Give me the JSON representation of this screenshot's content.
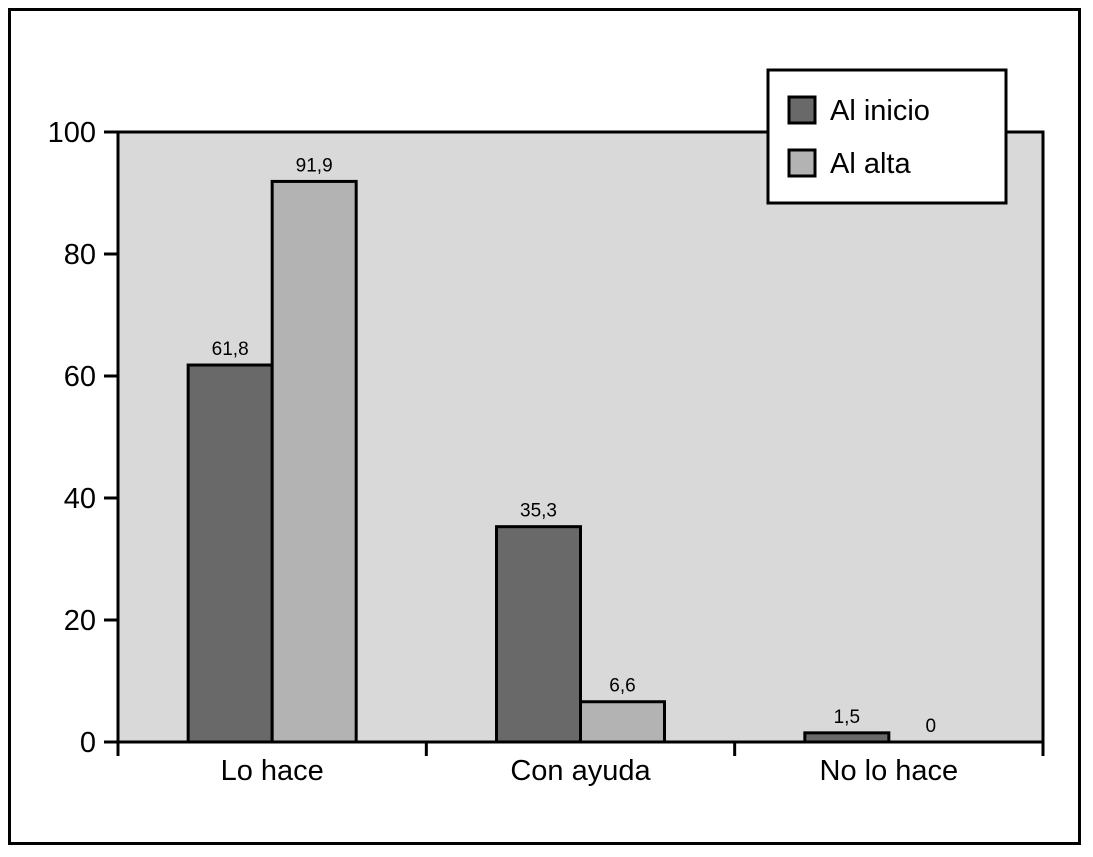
{
  "chart_data": {
    "type": "bar",
    "categories": [
      "Lo hace",
      "Con ayuda",
      "No lo hace"
    ],
    "series": [
      {
        "name": "Al inicio",
        "values": [
          61.8,
          35.3,
          1.5
        ],
        "labels": [
          "61,8",
          "35,3",
          "1,5"
        ],
        "color": "#696969"
      },
      {
        "name": "Al alta",
        "values": [
          91.9,
          6.6,
          0
        ],
        "labels": [
          "91,9",
          "6,6",
          "0"
        ],
        "color": "#b3b3b3"
      }
    ],
    "ylim": [
      0,
      100
    ],
    "yticks": [
      0,
      20,
      40,
      60,
      80,
      100
    ],
    "ytick_labels": [
      "0",
      "20",
      "40",
      "60",
      "80",
      "100"
    ],
    "plot_background": "#d9d9d9",
    "legend_position": "top-right",
    "title": "",
    "xlabel": "",
    "ylabel": ""
  }
}
